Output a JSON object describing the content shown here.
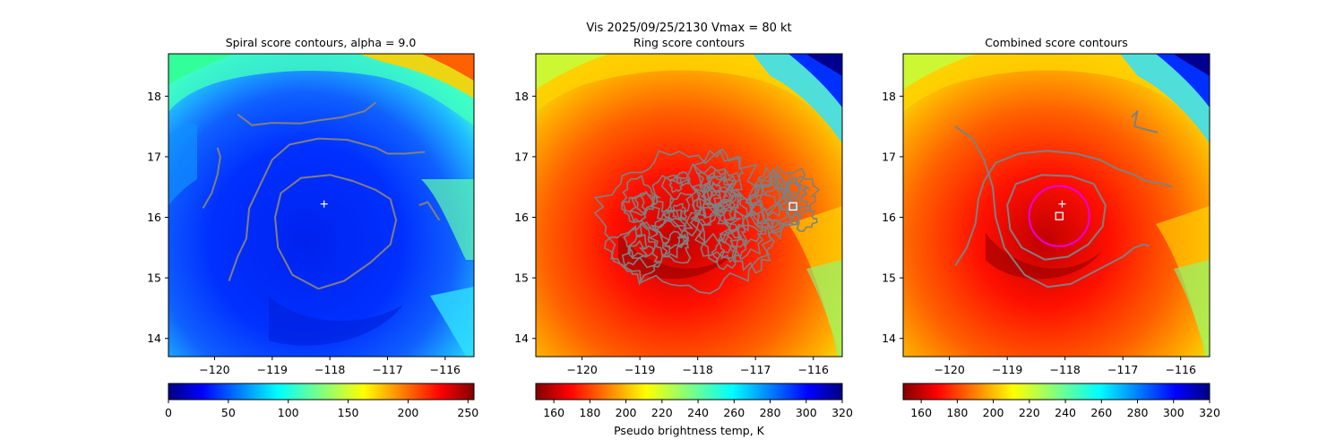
{
  "suptitle": {
    "line1": "Vis  2025/09/25/2130    Vmax = 80 kt"
  },
  "colors": {
    "contour": "#808080",
    "marker": "#ffffff",
    "circle": "#e600e6",
    "axes_edge": "#000000"
  },
  "chart_data": [
    {
      "type": "heatmap",
      "title": "Spiral score contours, alpha =  9.0",
      "xlim": [
        -120.8,
        -115.5
      ],
      "ylim": [
        13.7,
        18.7
      ],
      "xticks": [
        "−120",
        "−119",
        "−118",
        "−117",
        "−116"
      ],
      "xtick_values": [
        -120,
        -119,
        -118,
        -117,
        -116
      ],
      "yticks": [
        "14",
        "15",
        "16",
        "17",
        "18"
      ],
      "ytick_values": [
        14,
        15,
        16,
        17,
        18
      ],
      "colormap": "jet_r",
      "colorbar": {
        "range": [
          0,
          255
        ],
        "ticks": [
          "0",
          "50",
          "100",
          "150",
          "200",
          "250"
        ],
        "tick_values": [
          0,
          50,
          100,
          150,
          200,
          250
        ],
        "label": ""
      },
      "markers": [
        {
          "shape": "plus",
          "lon": -118.1,
          "lat": 16.22
        }
      ],
      "contours": [
        [
          [
            -119.6,
            17.7
          ],
          [
            -119.35,
            17.52
          ],
          [
            -119.0,
            17.56
          ],
          [
            -118.5,
            17.55
          ],
          [
            -118.2,
            17.6
          ],
          [
            -117.8,
            17.65
          ],
          [
            -117.4,
            17.75
          ],
          [
            -117.2,
            17.9
          ]
        ],
        [
          [
            -119.75,
            14.95
          ],
          [
            -119.6,
            15.35
          ],
          [
            -119.45,
            15.65
          ],
          [
            -119.4,
            16.15
          ],
          [
            -119.2,
            16.55
          ],
          [
            -119.0,
            16.95
          ],
          [
            -118.7,
            17.2
          ],
          [
            -118.2,
            17.3
          ],
          [
            -117.7,
            17.28
          ],
          [
            -117.2,
            17.15
          ],
          [
            -117.0,
            17.05
          ],
          [
            -116.7,
            17.05
          ],
          [
            -116.35,
            17.08
          ]
        ],
        [
          [
            -120.2,
            16.15
          ],
          [
            -120.05,
            16.4
          ],
          [
            -119.95,
            16.7
          ],
          [
            -119.9,
            17.0
          ],
          [
            -119.95,
            17.15
          ]
        ],
        [
          [
            -116.45,
            16.2
          ],
          [
            -116.3,
            16.25
          ],
          [
            -116.2,
            16.1
          ],
          [
            -116.1,
            15.95
          ]
        ],
        [
          [
            -118.2,
            14.82
          ],
          [
            -118.65,
            15.05
          ],
          [
            -118.9,
            15.5
          ],
          [
            -118.95,
            16.0
          ],
          [
            -118.85,
            16.4
          ],
          [
            -118.5,
            16.65
          ],
          [
            -118.0,
            16.7
          ],
          [
            -117.6,
            16.6
          ],
          [
            -117.2,
            16.45
          ],
          [
            -116.95,
            16.3
          ],
          [
            -116.85,
            15.95
          ],
          [
            -116.95,
            15.55
          ],
          [
            -117.3,
            15.25
          ],
          [
            -117.75,
            14.95
          ],
          [
            -118.2,
            14.82
          ]
        ]
      ]
    },
    {
      "type": "heatmap",
      "title": "Ring score contours",
      "xlim": [
        -120.8,
        -115.5
      ],
      "ylim": [
        13.7,
        18.7
      ],
      "xticks": [
        "−120",
        "−119",
        "−118",
        "−117",
        "−116"
      ],
      "xtick_values": [
        -120,
        -119,
        -118,
        -117,
        -116
      ],
      "yticks": [
        "14",
        "15",
        "16",
        "17",
        "18"
      ],
      "ytick_values": [
        14,
        15,
        16,
        17,
        18
      ],
      "colormap": "jet",
      "colorbar": {
        "range": [
          150,
          320
        ],
        "ticks": [
          "160",
          "180",
          "200",
          "220",
          "240",
          "260",
          "280",
          "300",
          "320"
        ],
        "tick_values": [
          160,
          180,
          200,
          220,
          240,
          260,
          280,
          300,
          320
        ],
        "label": "Pseudo brightness temp, K"
      },
      "markers": [
        {
          "shape": "square",
          "lon": -116.35,
          "lat": 16.18
        }
      ],
      "contours": []
    },
    {
      "type": "heatmap",
      "title": "Combined score contours",
      "xlim": [
        -120.8,
        -115.5
      ],
      "ylim": [
        13.7,
        18.7
      ],
      "xticks": [
        "−120",
        "−119",
        "−118",
        "−117",
        "−116"
      ],
      "xtick_values": [
        -120,
        -119,
        -118,
        -117,
        -116
      ],
      "yticks": [
        "14",
        "15",
        "16",
        "17",
        "18"
      ],
      "ytick_values": [
        14,
        15,
        16,
        17,
        18
      ],
      "colormap": "jet",
      "colorbar": {
        "range": [
          150,
          320
        ],
        "ticks": [
          "160",
          "180",
          "200",
          "220",
          "240",
          "260",
          "280",
          "300",
          "320"
        ],
        "tick_values": [
          160,
          180,
          200,
          220,
          240,
          260,
          280,
          300,
          320
        ],
        "label": ""
      },
      "markers": [
        {
          "shape": "plus",
          "lon": -118.05,
          "lat": 16.22
        },
        {
          "shape": "square",
          "lon": -118.1,
          "lat": 16.02
        },
        {
          "shape": "circle",
          "lon": -118.1,
          "lat": 16.02,
          "radius_deg": 0.52
        }
      ],
      "contours": [
        [
          [
            -119.9,
            15.2
          ],
          [
            -119.7,
            15.5
          ],
          [
            -119.55,
            15.9
          ],
          [
            -119.5,
            16.3
          ],
          [
            -119.4,
            16.6
          ],
          [
            -119.2,
            16.9
          ],
          [
            -118.8,
            17.05
          ],
          [
            -118.3,
            17.1
          ],
          [
            -117.8,
            17.05
          ],
          [
            -117.4,
            16.95
          ],
          [
            -117.1,
            16.8
          ],
          [
            -116.8,
            16.7
          ],
          [
            -116.6,
            16.6
          ],
          [
            -116.3,
            16.55
          ],
          [
            -116.15,
            16.5
          ]
        ],
        [
          [
            -119.9,
            17.5
          ],
          [
            -119.6,
            17.3
          ],
          [
            -119.4,
            16.95
          ],
          [
            -119.25,
            16.5
          ],
          [
            -119.2,
            16.0
          ],
          [
            -119.05,
            15.5
          ],
          [
            -118.7,
            15.05
          ],
          [
            -118.3,
            14.85
          ],
          [
            -117.9,
            14.9
          ],
          [
            -117.6,
            15.05
          ],
          [
            -117.3,
            15.2
          ],
          [
            -117.0,
            15.35
          ],
          [
            -116.8,
            15.5
          ],
          [
            -116.65,
            15.55
          ],
          [
            -116.55,
            15.53
          ]
        ],
        [
          [
            -118.35,
            15.3
          ],
          [
            -118.75,
            15.5
          ],
          [
            -118.95,
            15.8
          ],
          [
            -119.0,
            16.2
          ],
          [
            -118.85,
            16.55
          ],
          [
            -118.4,
            16.7
          ],
          [
            -117.9,
            16.68
          ],
          [
            -117.5,
            16.55
          ],
          [
            -117.3,
            16.2
          ],
          [
            -117.35,
            15.85
          ],
          [
            -117.6,
            15.55
          ],
          [
            -117.95,
            15.35
          ],
          [
            -118.35,
            15.3
          ]
        ],
        [
          [
            -116.85,
            17.65
          ],
          [
            -116.75,
            17.75
          ],
          [
            -116.8,
            17.5
          ],
          [
            -116.6,
            17.45
          ],
          [
            -116.4,
            17.4
          ]
        ]
      ]
    }
  ]
}
